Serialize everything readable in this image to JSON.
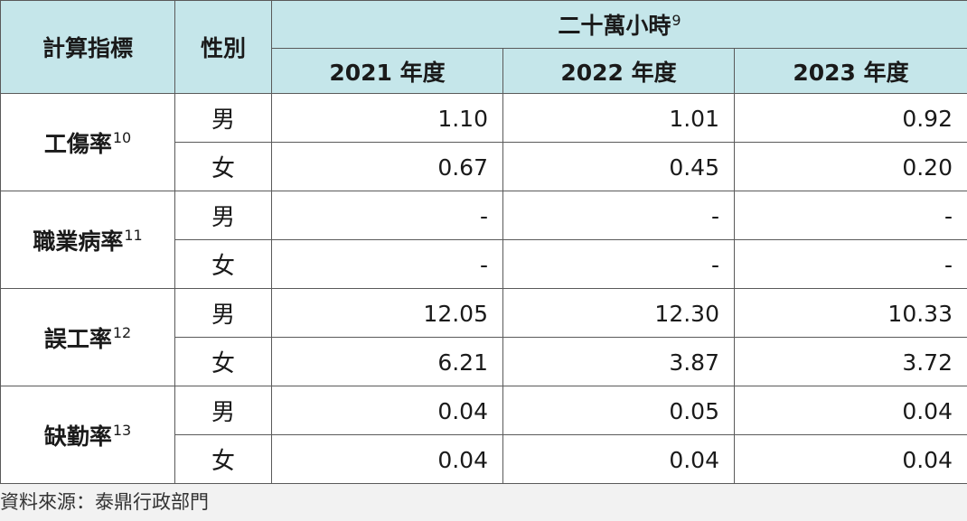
{
  "table": {
    "header": {
      "metric": "計算指標",
      "gender": "性別",
      "group_label": "二十萬小時",
      "group_note": "9",
      "years": [
        "2021 年度",
        "2022 年度",
        "2023 年度"
      ]
    },
    "rows": [
      {
        "metric": "工傷率",
        "note": "10",
        "entries": [
          {
            "gender": "男",
            "values": [
              "1.10",
              "1.01",
              "0.92"
            ]
          },
          {
            "gender": "女",
            "values": [
              "0.67",
              "0.45",
              "0.20"
            ]
          }
        ]
      },
      {
        "metric": "職業病率",
        "note": "11",
        "entries": [
          {
            "gender": "男",
            "values": [
              "-",
              "-",
              "-"
            ]
          },
          {
            "gender": "女",
            "values": [
              "-",
              "-",
              "-"
            ]
          }
        ]
      },
      {
        "metric": "誤工率",
        "note": "12",
        "entries": [
          {
            "gender": "男",
            "values": [
              "12.05",
              "12.30",
              "10.33"
            ]
          },
          {
            "gender": "女",
            "values": [
              "6.21",
              "3.87",
              "3.72"
            ]
          }
        ]
      },
      {
        "metric": "缺勤率",
        "note": "13",
        "entries": [
          {
            "gender": "男",
            "values": [
              "0.04",
              "0.05",
              "0.04"
            ]
          },
          {
            "gender": "女",
            "values": [
              "0.04",
              "0.04",
              "0.04"
            ]
          }
        ]
      }
    ]
  },
  "source": "資料來源：泰鼎行政部門"
}
